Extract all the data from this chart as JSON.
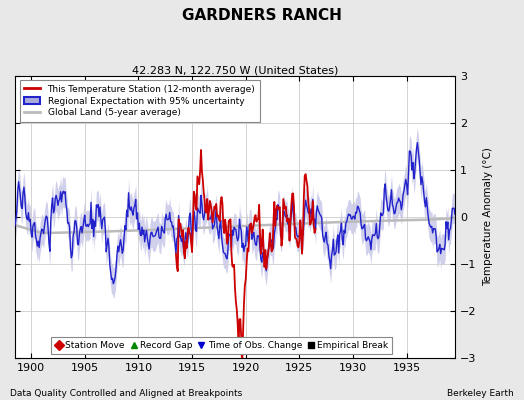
{
  "title": "GARDNERS RANCH",
  "subtitle": "42.283 N, 122.750 W (United States)",
  "ylabel": "Temperature Anomaly (°C)",
  "xlabel_note": "Data Quality Controlled and Aligned at Breakpoints",
  "credit": "Berkeley Earth",
  "xlim": [
    1898.5,
    1939.5
  ],
  "ylim": [
    -3,
    3
  ],
  "yticks": [
    -3,
    -2,
    -1,
    0,
    1,
    2,
    3
  ],
  "xticks": [
    1900,
    1905,
    1910,
    1915,
    1920,
    1925,
    1930,
    1935
  ],
  "bg_color": "#e8e8e8",
  "plot_bg_color": "#ffffff",
  "regional_color": "#2222cc",
  "regional_fill_color": "#aaaadd",
  "station_color": "#cc0000",
  "global_color": "#bbbbbb",
  "seed": 17
}
